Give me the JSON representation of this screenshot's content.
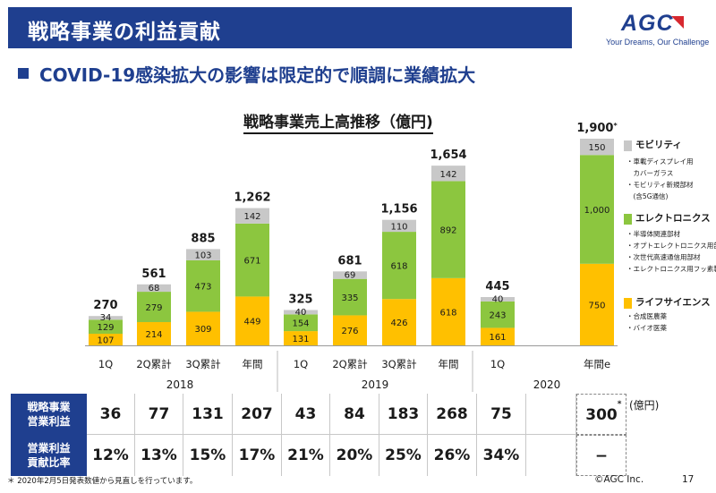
{
  "header": {
    "title": "戦略事業の利益貢献",
    "logo_text": "AGC",
    "logo_tagline": "Your Dreams, Our Challenge"
  },
  "subtitle": "COVID-19感染拡大の影響は限定的で順調に業績拡大",
  "chart_data": {
    "type": "bar",
    "stacked": true,
    "title": "戦略事業売上高推移（億円)",
    "categories": [
      "1Q",
      "2Q累計",
      "3Q累計",
      "年間",
      "1Q",
      "2Q累計",
      "3Q累計",
      "年間",
      "1Q",
      "年間e"
    ],
    "year_groups": [
      {
        "label": "2018",
        "span": [
          0,
          3
        ]
      },
      {
        "label": "2019",
        "span": [
          4,
          7
        ]
      },
      {
        "label": "2020",
        "span": [
          8,
          9
        ]
      }
    ],
    "series": [
      {
        "name": "ライフサイエンス",
        "color": "#ffc000",
        "values": [
          107,
          214,
          309,
          449,
          131,
          276,
          426,
          618,
          161,
          750
        ],
        "labels": [
          "107",
          "214",
          "309",
          "449",
          "131",
          "276",
          "426",
          "618",
          "161",
          "750"
        ]
      },
      {
        "name": "エレクトロニクス",
        "color": "#8cc63f",
        "values": [
          129,
          279,
          473,
          671,
          154,
          335,
          618,
          892,
          243,
          1000
        ],
        "labels": [
          "129",
          "279",
          "473",
          "671",
          "154",
          "335",
          "618",
          "892",
          "243",
          "1,000"
        ]
      },
      {
        "name": "モビリティ",
        "color": "#c8c8c8",
        "values": [
          34,
          68,
          103,
          142,
          40,
          69,
          110,
          142,
          40,
          150
        ],
        "labels": [
          "34",
          "68",
          "103",
          "142",
          "40",
          "69",
          "110",
          "142",
          "40",
          "150"
        ]
      }
    ],
    "totals": [
      "270",
      "561",
      "885",
      "1,262",
      "325",
      "681",
      "1,156",
      "1,654",
      "445",
      "1,900"
    ],
    "total_note_last": "*",
    "ylim": [
      0,
      1900
    ]
  },
  "legend": [
    {
      "label": "モビリティ",
      "color": "#c8c8c8",
      "items": [
        "・車載ディスプレイ用",
        "　カバーガラス",
        "・モビリティ新規部材",
        "　(含5G通信)"
      ]
    },
    {
      "label": "エレクトロニクス",
      "color": "#8cc63f",
      "items": [
        "・半導体関連部材",
        "・オプトエレクトロニクス用部材",
        "・次世代高速通信用部材",
        "・エレクトロニクス用フッ素製品"
      ]
    },
    {
      "label": "ライフサイエンス",
      "color": "#ffc000",
      "items": [
        "・合成医農薬",
        "・バイオ医薬"
      ]
    }
  ],
  "table": {
    "row1_head": [
      "戦略事業",
      "営業利益"
    ],
    "row1": [
      "36",
      "77",
      "131",
      "207",
      "43",
      "84",
      "183",
      "268",
      "75",
      "",
      "300"
    ],
    "row1_note": "*",
    "row2_head": [
      "営業利益",
      "貢献比率"
    ],
    "row2": [
      "12%",
      "13%",
      "15%",
      "17%",
      "21%",
      "20%",
      "25%",
      "26%",
      "34%",
      "",
      "−"
    ],
    "unit": "(億円)"
  },
  "footnote": "＊ 2020年2月5日発表数値から見直しを行っています。",
  "copyright": "©AGC Inc.",
  "page_number": "17"
}
